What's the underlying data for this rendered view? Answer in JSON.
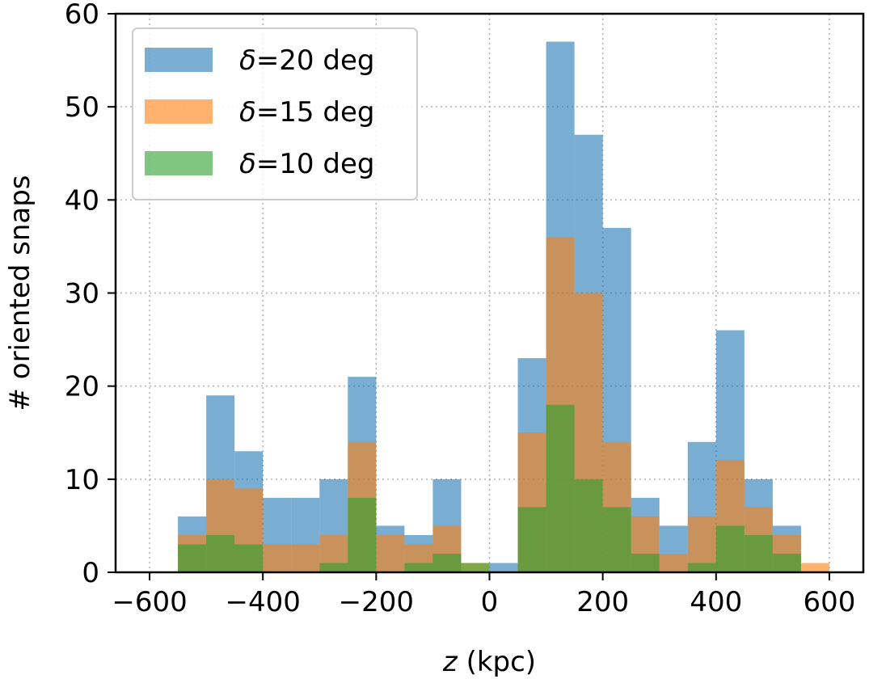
{
  "chart_data": {
    "type": "bar",
    "subtype": "overlaid-histogram",
    "title": "",
    "xlabel_var": "z",
    "xlabel_units": " (kpc)",
    "ylabel": "# oriented snaps",
    "xlim": [
      -660,
      660
    ],
    "ylim": [
      0,
      60
    ],
    "xticks": [
      -600,
      -400,
      -200,
      0,
      200,
      400,
      600
    ],
    "xtick_labels": [
      "−600",
      "−400",
      "−200",
      "0",
      "200",
      "400",
      "600"
    ],
    "yticks": [
      0,
      10,
      20,
      30,
      40,
      50,
      60
    ],
    "ytick_labels": [
      "0",
      "10",
      "20",
      "30",
      "40",
      "50",
      "60"
    ],
    "grid": true,
    "legend_position": "top-left",
    "bin_edges": [
      -550,
      -500,
      -450,
      -400,
      -350,
      -300,
      -250,
      -200,
      -150,
      -100,
      -50,
      0,
      50,
      100,
      150,
      200,
      250,
      300,
      350,
      400,
      450,
      500,
      550,
      600
    ],
    "series": [
      {
        "name": "δ=20 deg",
        "name_symbol": "δ",
        "name_rest": "=20 deg",
        "color": "#1f77b4",
        "opacity": 0.6,
        "values": [
          6,
          19,
          13,
          8,
          8,
          10,
          21,
          5,
          4,
          10,
          0,
          1,
          23,
          57,
          47,
          37,
          8,
          5,
          14,
          26,
          10,
          5,
          0
        ]
      },
      {
        "name": "δ=15 deg",
        "name_symbol": "δ",
        "name_rest": "=15 deg",
        "color": "#ff7f0e",
        "opacity": 0.6,
        "values": [
          4,
          10,
          9,
          3,
          3,
          4,
          14,
          4,
          3,
          5,
          1,
          0,
          15,
          36,
          30,
          14,
          6,
          2,
          6,
          12,
          7,
          4,
          1
        ]
      },
      {
        "name": "δ=10 deg",
        "name_symbol": "δ",
        "name_rest": "=10 deg",
        "color": "#2ca02c",
        "opacity": 0.6,
        "values": [
          3,
          4,
          3,
          0,
          0,
          1,
          8,
          0,
          1,
          2,
          1,
          0,
          7,
          18,
          10,
          7,
          2,
          0,
          1,
          5,
          4,
          2,
          0
        ]
      }
    ]
  }
}
